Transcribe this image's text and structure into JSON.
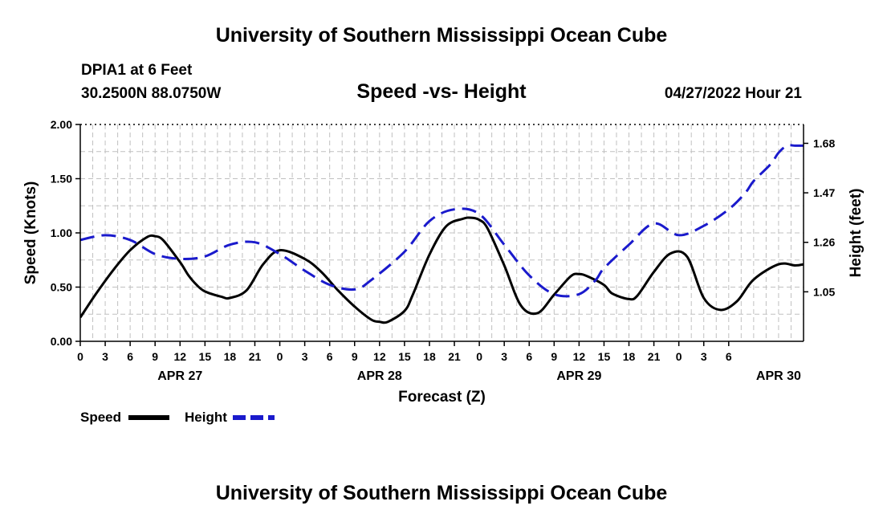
{
  "header": {
    "title": "University of Southern Mississippi Ocean Cube",
    "station": "DPIA1 at 6 Feet",
    "coordinates": "30.2500N  88.0750W",
    "subtitle": "Speed -vs- Height",
    "datetime": "04/27/2022 Hour 21"
  },
  "footer": {
    "title": "University of Southern Mississippi Ocean Cube"
  },
  "colors": {
    "speed": "#000000",
    "height": "#1a1acc",
    "grid": "#c0c0c0"
  },
  "chart_data": {
    "type": "line",
    "title": "Speed -vs- Height",
    "xlabel": "Forecast (Z)",
    "ylabel_left": "Speed (Knots)",
    "ylabel_right": "Height (feet)",
    "x_hours": [
      0,
      87
    ],
    "ylim_left": [
      0,
      2
    ],
    "ylim_right": [
      0.84,
      1.76
    ],
    "yticks_left": [
      "0.00",
      "0.50",
      "1.00",
      "1.50",
      "2.00"
    ],
    "yticks_left_values": [
      0,
      0.5,
      1.0,
      1.5,
      2.0
    ],
    "yticks_right": [
      "1.05",
      "1.26",
      "1.47",
      "1.68"
    ],
    "yticks_right_values": [
      1.05,
      1.26,
      1.47,
      1.68
    ],
    "xtick_labels": [
      "0",
      "3",
      "6",
      "9",
      "12",
      "15",
      "18",
      "21",
      "0",
      "3",
      "6",
      "9",
      "12",
      "15",
      "18",
      "21",
      "0",
      "3",
      "6",
      "9",
      "12",
      "15",
      "18",
      "21",
      "0",
      "3",
      "6"
    ],
    "day_labels": [
      {
        "label": "APR 27",
        "hour": 12
      },
      {
        "label": "APR 28",
        "hour": 36
      },
      {
        "label": "APR 29",
        "hour": 60
      },
      {
        "label": "APR 30",
        "hour": 84
      }
    ],
    "grid": true,
    "grid_step_hours": 1.5,
    "legend": {
      "position": "bottom-left",
      "speed_label": "Speed",
      "height_label": "Height"
    },
    "series": [
      {
        "name": "Speed",
        "axis": "left",
        "style": "solid",
        "x": [
          0,
          2,
          4,
          6,
          8,
          9,
          10,
          12,
          13,
          14,
          15,
          17,
          18,
          20,
          22,
          24,
          27,
          29,
          31,
          33,
          35,
          36,
          37,
          39,
          40,
          42,
          44,
          46,
          47,
          48,
          49,
          51,
          53,
          55,
          57,
          59,
          60,
          61,
          63,
          64,
          66,
          67,
          69,
          71,
          73,
          75,
          77,
          79,
          81,
          84,
          86,
          87
        ],
        "y": [
          0.22,
          0.45,
          0.66,
          0.84,
          0.96,
          0.97,
          0.93,
          0.73,
          0.61,
          0.52,
          0.46,
          0.41,
          0.4,
          0.47,
          0.71,
          0.84,
          0.76,
          0.64,
          0.47,
          0.32,
          0.2,
          0.18,
          0.18,
          0.28,
          0.43,
          0.8,
          1.06,
          1.13,
          1.14,
          1.12,
          1.04,
          0.7,
          0.33,
          0.26,
          0.43,
          0.6,
          0.62,
          0.6,
          0.52,
          0.44,
          0.39,
          0.42,
          0.64,
          0.81,
          0.78,
          0.4,
          0.29,
          0.37,
          0.57,
          0.71,
          0.7,
          0.71
        ]
      },
      {
        "name": "Height",
        "axis": "right",
        "style": "dashed",
        "x": [
          0,
          3,
          6,
          9,
          12,
          15,
          18,
          21,
          24,
          27,
          30,
          33,
          35,
          39,
          42,
          45,
          48,
          51,
          54,
          57,
          60,
          62,
          63,
          66,
          69,
          72,
          75,
          78,
          80,
          81,
          83,
          84,
          85,
          86,
          87
        ],
        "y": [
          1.27,
          1.29,
          1.27,
          1.21,
          1.19,
          1.2,
          1.25,
          1.26,
          1.21,
          1.14,
          1.08,
          1.06,
          1.1,
          1.22,
          1.35,
          1.4,
          1.38,
          1.25,
          1.12,
          1.04,
          1.04,
          1.1,
          1.15,
          1.25,
          1.34,
          1.29,
          1.33,
          1.4,
          1.47,
          1.52,
          1.59,
          1.64,
          1.67,
          1.67,
          1.67
        ]
      }
    ]
  }
}
